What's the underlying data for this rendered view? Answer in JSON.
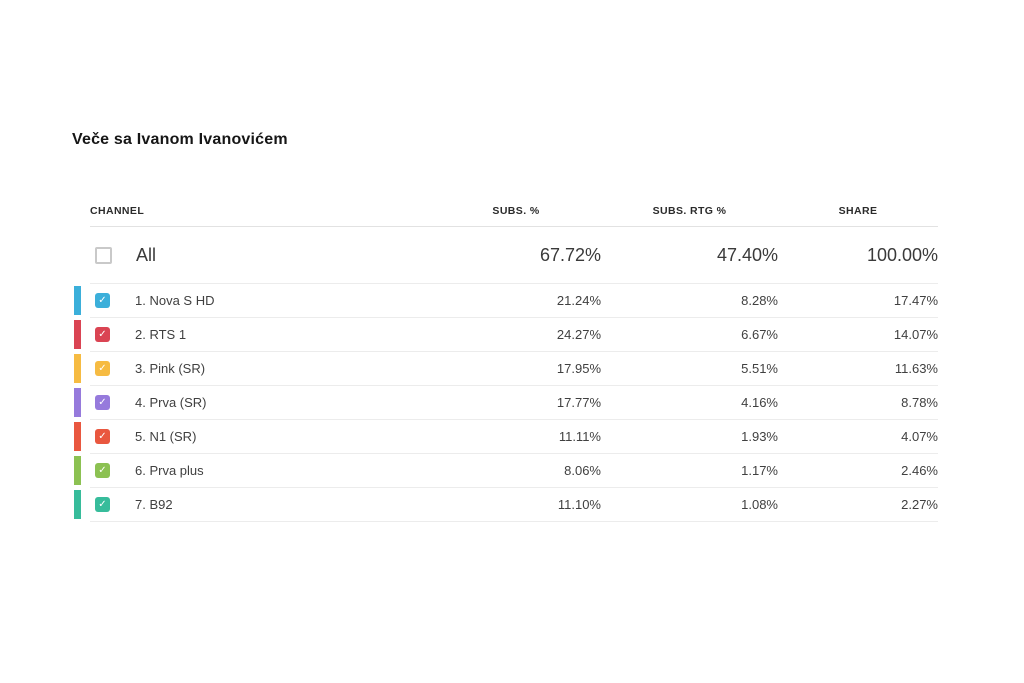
{
  "page": {
    "title": "Veče sa Ivanom Ivanovićem"
  },
  "icons": {
    "check": "✓"
  },
  "table": {
    "headers": {
      "channel": "CHANNEL",
      "subs": "SUBS. %",
      "subs_rtg": "SUBS. RTG %",
      "share": "SHARE"
    },
    "all_row": {
      "label": "All",
      "checked": false,
      "subs": "67.72%",
      "subs_rtg": "47.40%",
      "share": "100.00%"
    },
    "rows": [
      {
        "label": "1. Nova S HD",
        "color": "#3BAFDA",
        "checked": true,
        "subs": "21.24%",
        "subs_rtg": "8.28%",
        "share": "17.47%"
      },
      {
        "label": "2. RTS 1",
        "color": "#DA4453",
        "checked": true,
        "subs": "24.27%",
        "subs_rtg": "6.67%",
        "share": "14.07%"
      },
      {
        "label": "3. Pink (SR)",
        "color": "#F6BB42",
        "checked": true,
        "subs": "17.95%",
        "subs_rtg": "5.51%",
        "share": "11.63%"
      },
      {
        "label": "4. Prva (SR)",
        "color": "#967ADC",
        "checked": true,
        "subs": "17.77%",
        "subs_rtg": "4.16%",
        "share": "8.78%"
      },
      {
        "label": "5. N1 (SR)",
        "color": "#E9573F",
        "checked": true,
        "subs": "11.11%",
        "subs_rtg": "1.93%",
        "share": "4.07%"
      },
      {
        "label": "6. Prva plus",
        "color": "#8CC152",
        "checked": true,
        "subs": "8.06%",
        "subs_rtg": "1.17%",
        "share": "2.46%"
      },
      {
        "label": "7. B92",
        "color": "#37BC9B",
        "checked": true,
        "subs": "11.10%",
        "subs_rtg": "1.08%",
        "share": "2.27%"
      }
    ]
  }
}
